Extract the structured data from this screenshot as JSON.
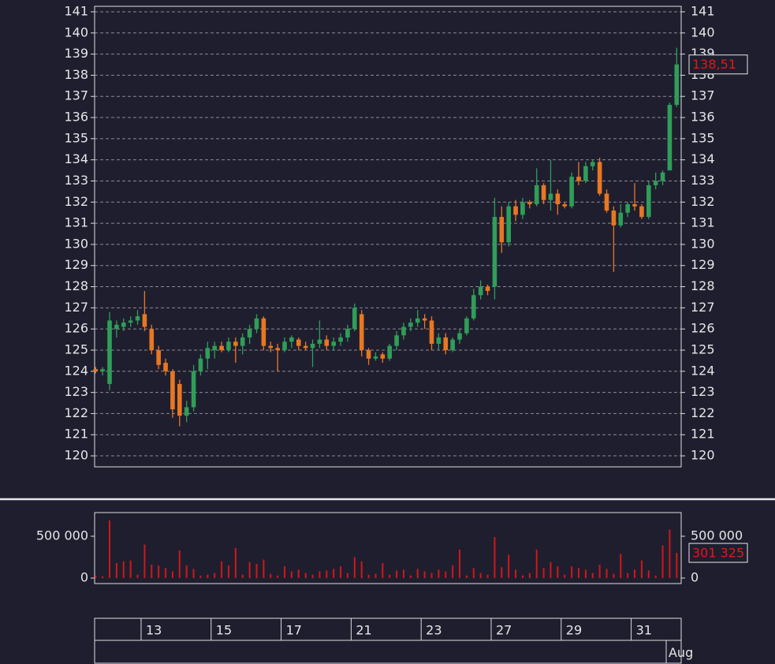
{
  "chart_data": [
    {
      "type": "candlestick",
      "open": [
        124.1,
        124.0,
        123.4,
        126.0,
        126.1,
        126.3,
        126.4,
        126.7,
        126.0,
        125.0,
        124.4,
        124.0,
        123.4,
        121.9,
        122.3,
        124.0,
        124.6,
        125.0,
        125.2,
        125.0,
        125.4,
        125.2,
        125.6,
        126.0,
        126.5,
        125.2,
        125.1,
        125.0,
        125.4,
        125.5,
        125.2,
        125.1,
        125.3,
        125.5,
        125.2,
        125.4,
        125.6,
        126.0,
        126.7,
        125.0,
        124.6,
        124.8,
        124.6,
        125.2,
        125.7,
        126.1,
        126.3,
        126.5,
        126.4,
        125.3,
        125.6,
        125.0,
        125.5,
        125.8,
        126.5,
        127.6,
        128.0,
        128.0,
        131.3,
        130.1,
        131.8,
        131.4,
        132.0,
        131.9,
        132.8,
        132.1,
        132.4,
        131.9,
        131.8,
        133.2,
        133.0,
        133.7,
        133.9,
        132.4,
        131.6,
        130.9,
        131.5,
        131.9,
        131.8,
        131.3,
        132.8,
        133.0,
        133.5,
        136.6
      ],
      "high": [
        124.2,
        124.2,
        126.8,
        126.4,
        126.5,
        126.6,
        126.9,
        127.8,
        126.2,
        125.2,
        124.6,
        124.1,
        123.6,
        122.6,
        124.3,
        124.8,
        125.4,
        125.4,
        125.4,
        125.6,
        125.6,
        125.8,
        126.2,
        126.7,
        126.6,
        125.4,
        125.3,
        125.6,
        125.7,
        125.6,
        125.4,
        125.5,
        126.4,
        125.7,
        125.6,
        125.8,
        126.2,
        127.2,
        126.9,
        125.1,
        124.9,
        124.9,
        125.3,
        125.9,
        126.3,
        126.5,
        126.9,
        126.7,
        126.6,
        125.8,
        125.8,
        125.6,
        126.0,
        126.6,
        127.9,
        128.3,
        128.1,
        132.2,
        131.8,
        132.0,
        132.1,
        132.2,
        132.1,
        133.6,
        132.9,
        134.0,
        132.6,
        132.0,
        133.4,
        133.9,
        133.9,
        134.0,
        134.1,
        132.6,
        131.8,
        131.9,
        132.0,
        132.9,
        131.9,
        133.0,
        133.4,
        133.5,
        136.7,
        139.3
      ],
      "low": [
        123.9,
        123.8,
        123.1,
        125.6,
        125.9,
        126.1,
        126.2,
        125.9,
        124.8,
        124.1,
        123.8,
        121.8,
        121.4,
        121.6,
        122.1,
        123.8,
        124.1,
        124.6,
        124.9,
        124.9,
        124.4,
        124.8,
        125.3,
        125.8,
        125.0,
        124.9,
        124.0,
        124.9,
        125.1,
        125.0,
        125.0,
        124.2,
        125.1,
        125.0,
        125.0,
        125.2,
        125.4,
        125.9,
        124.7,
        124.3,
        124.5,
        124.4,
        124.5,
        125.0,
        125.5,
        125.9,
        126.1,
        126.0,
        125.0,
        125.0,
        124.8,
        124.9,
        125.3,
        125.7,
        126.4,
        127.4,
        127.6,
        127.4,
        129.6,
        129.9,
        131.1,
        131.2,
        131.7,
        131.8,
        131.9,
        131.6,
        131.4,
        131.7,
        131.7,
        132.8,
        132.9,
        133.5,
        132.3,
        131.5,
        128.7,
        130.8,
        131.3,
        131.6,
        131.2,
        131.2,
        132.6,
        132.8,
        133.5,
        136.5
      ],
      "close": [
        124.0,
        124.1,
        126.4,
        126.2,
        126.3,
        126.4,
        126.6,
        126.1,
        125.0,
        124.3,
        124.0,
        122.2,
        121.9,
        122.3,
        124.0,
        124.6,
        125.1,
        125.2,
        125.0,
        125.4,
        125.2,
        125.6,
        126.0,
        126.5,
        125.2,
        125.1,
        125.0,
        125.4,
        125.6,
        125.2,
        125.1,
        125.3,
        125.5,
        125.2,
        125.4,
        125.6,
        126.0,
        127.0,
        125.0,
        124.6,
        124.7,
        124.6,
        125.2,
        125.7,
        126.1,
        126.3,
        126.5,
        126.4,
        125.3,
        125.6,
        125.0,
        125.5,
        125.8,
        126.5,
        127.6,
        128.0,
        127.8,
        131.3,
        130.1,
        131.8,
        131.4,
        132.0,
        131.9,
        132.8,
        132.1,
        132.4,
        131.9,
        131.8,
        133.2,
        133.0,
        133.7,
        133.9,
        132.4,
        131.6,
        130.9,
        131.5,
        131.9,
        131.8,
        131.3,
        132.8,
        133.0,
        133.4,
        136.6,
        138.51
      ],
      "last_value_label": "138,51",
      "up_color": "#2f9e58",
      "down_color": "#e87722",
      "label_color": "#e01818",
      "xlim": [
        -0.14,
        83.64
      ],
      "ylim": [
        119.48,
        141.26
      ],
      "yticks": [
        120,
        121,
        122,
        123,
        124,
        125,
        126,
        127,
        128,
        129,
        130,
        131,
        132,
        133,
        134,
        135,
        136,
        137,
        138,
        139,
        140,
        141
      ],
      "grid": true
    },
    {
      "type": "bar",
      "values": [
        30000,
        20000,
        690000,
        180000,
        200000,
        210000,
        40000,
        400000,
        160000,
        150000,
        120000,
        80000,
        330000,
        150000,
        110000,
        30000,
        40000,
        60000,
        200000,
        150000,
        360000,
        40000,
        190000,
        170000,
        220000,
        50000,
        30000,
        140000,
        80000,
        100000,
        60000,
        40000,
        80000,
        90000,
        110000,
        140000,
        60000,
        250000,
        200000,
        40000,
        50000,
        180000,
        40000,
        90000,
        100000,
        30000,
        110000,
        80000,
        60000,
        100000,
        80000,
        150000,
        340000,
        30000,
        120000,
        60000,
        40000,
        490000,
        130000,
        280000,
        100000,
        30000,
        60000,
        340000,
        120000,
        190000,
        140000,
        40000,
        140000,
        120000,
        100000,
        60000,
        160000,
        110000,
        50000,
        290000,
        60000,
        100000,
        210000,
        90000,
        30000,
        390000,
        580000,
        301325
      ],
      "last_value_label": "301 325",
      "color": "#d01818",
      "label_color": "#e01818",
      "xlim": [
        -0.14,
        83.64
      ],
      "ylim": [
        -66000,
        783000
      ],
      "yticks": [
        0,
        {
          "value": 500000,
          "label": "500 000"
        }
      ],
      "xticks": [
        {
          "value": 6.5,
          "label": "13"
        },
        {
          "value": 16.5,
          "label": "15"
        },
        {
          "value": 26.5,
          "label": "17"
        },
        {
          "value": 36.5,
          "label": "21"
        },
        {
          "value": 46.5,
          "label": "23"
        },
        {
          "value": 56.5,
          "label": "27"
        },
        {
          "value": 66.5,
          "label": "29"
        },
        {
          "value": 76.5,
          "label": "31"
        }
      ],
      "month_ticks": [
        {
          "value": 81.5,
          "label": "Aug"
        }
      ]
    }
  ]
}
